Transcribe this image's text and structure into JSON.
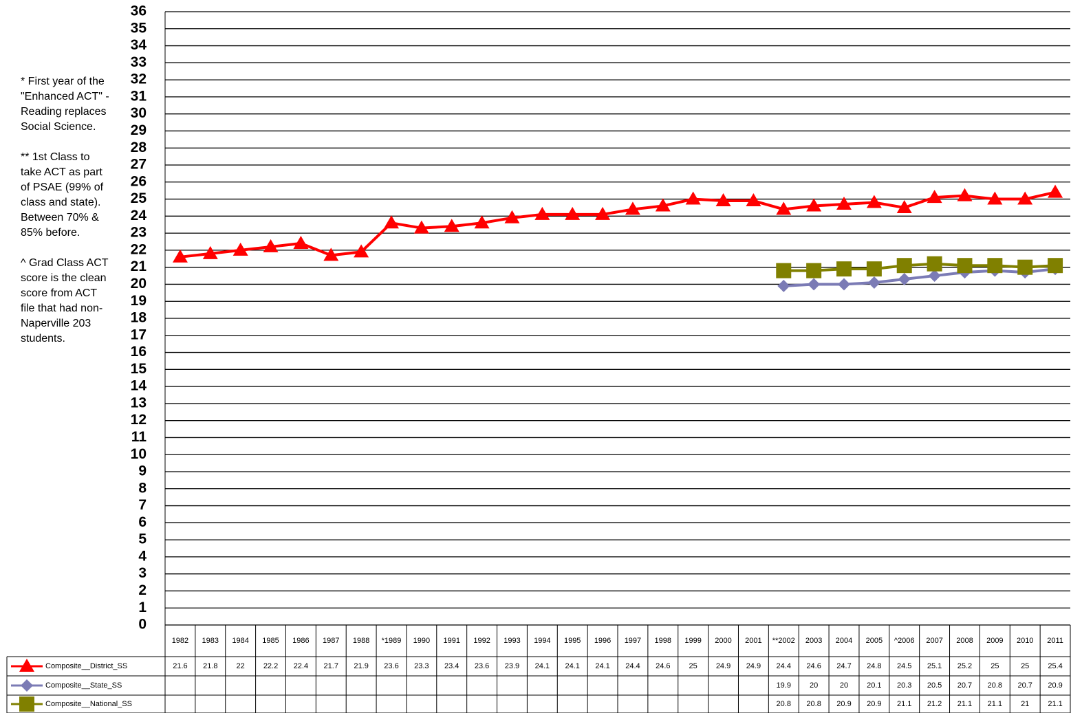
{
  "chart_data": {
    "type": "line",
    "notes": [
      "* First year of the \"Enhanced ACT\" - Reading replaces Social Science.",
      "** 1st Class to take ACT as part of PSAE (99% of class and state). Between 70% & 85% before.",
      "^ Grad Class ACT score is the clean score from ACT file that had non-Naperville 203 students."
    ],
    "categories": [
      "1982",
      "1983",
      "1984",
      "1985",
      "1986",
      "1987",
      "1988",
      "*1989",
      "1990",
      "1991",
      "1992",
      "1993",
      "1994",
      "1995",
      "1996",
      "1997",
      "1998",
      "1999",
      "2000",
      "2001",
      "**2002",
      "2003",
      "2004",
      "2005",
      "^2006",
      "2007",
      "2008",
      "2009",
      "2010",
      "2011"
    ],
    "series": [
      {
        "name": "Composite__District_SS",
        "color": "#ff0000",
        "marker": "triangle",
        "values": [
          21.6,
          21.8,
          22,
          22.2,
          22.4,
          21.7,
          21.9,
          23.6,
          23.3,
          23.4,
          23.6,
          23.9,
          24.1,
          24.1,
          24.1,
          24.4,
          24.6,
          25,
          24.9,
          24.9,
          24.4,
          24.6,
          24.7,
          24.8,
          24.5,
          25.1,
          25.2,
          25,
          25,
          25.4
        ]
      },
      {
        "name": "Composite__State_SS",
        "color": "#7b7bb5",
        "marker": "diamond",
        "values": [
          null,
          null,
          null,
          null,
          null,
          null,
          null,
          null,
          null,
          null,
          null,
          null,
          null,
          null,
          null,
          null,
          null,
          null,
          null,
          null,
          19.9,
          20,
          20,
          20.1,
          20.3,
          20.5,
          20.7,
          20.8,
          20.7,
          20.9
        ]
      },
      {
        "name": "Composite__National_SS",
        "color": "#808000",
        "marker": "square",
        "values": [
          null,
          null,
          null,
          null,
          null,
          null,
          null,
          null,
          null,
          null,
          null,
          null,
          null,
          null,
          null,
          null,
          null,
          null,
          null,
          null,
          20.8,
          20.8,
          20.9,
          20.9,
          21.1,
          21.2,
          21.1,
          21.1,
          21,
          21.1
        ]
      }
    ],
    "ylim": [
      0,
      36
    ],
    "yticks": [
      0,
      1,
      2,
      3,
      4,
      5,
      6,
      7,
      8,
      9,
      10,
      11,
      12,
      13,
      14,
      15,
      16,
      17,
      18,
      19,
      20,
      21,
      22,
      23,
      24,
      25,
      26,
      27,
      28,
      29,
      30,
      31,
      32,
      33,
      34,
      35,
      36
    ],
    "grid": true
  }
}
